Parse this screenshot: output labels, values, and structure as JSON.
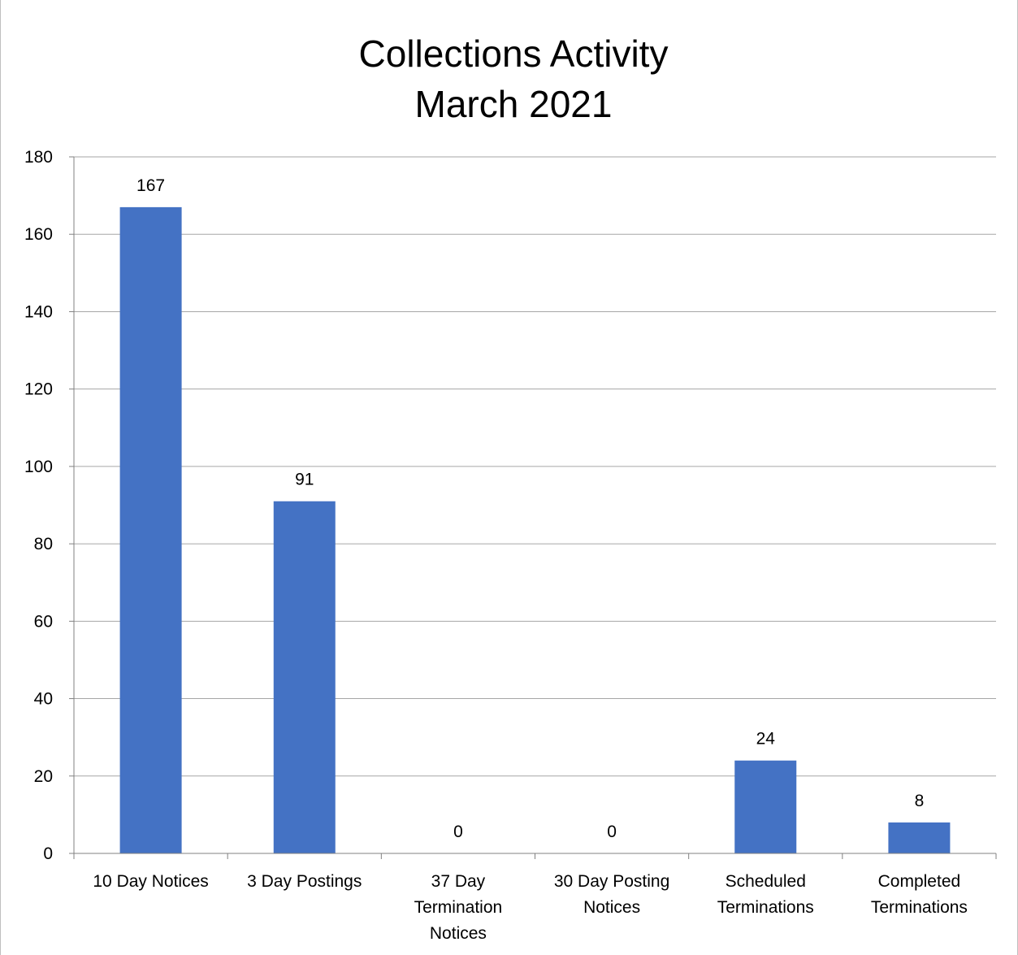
{
  "chart_data": {
    "type": "bar",
    "title_lines": [
      "Collections Activity",
      "March 2021"
    ],
    "categories": [
      [
        "10 Day Notices"
      ],
      [
        "3 Day Postings"
      ],
      [
        "37 Day",
        "Termination",
        "Notices"
      ],
      [
        "30 Day Posting",
        "Notices"
      ],
      [
        "Scheduled",
        "Terminations"
      ],
      [
        "Completed",
        "Terminations"
      ]
    ],
    "values": [
      167,
      91,
      0,
      0,
      24,
      8
    ],
    "data_labels": [
      "167",
      "91",
      "0",
      "0",
      "24",
      "8"
    ],
    "ylim": [
      0,
      180
    ],
    "yticks": [
      0,
      20,
      40,
      60,
      80,
      100,
      120,
      140,
      160,
      180
    ],
    "grid": true,
    "legend": "none",
    "colors": {
      "bar": "#4472C4",
      "grid": "#a6a6a6",
      "axis": "#808080"
    }
  }
}
